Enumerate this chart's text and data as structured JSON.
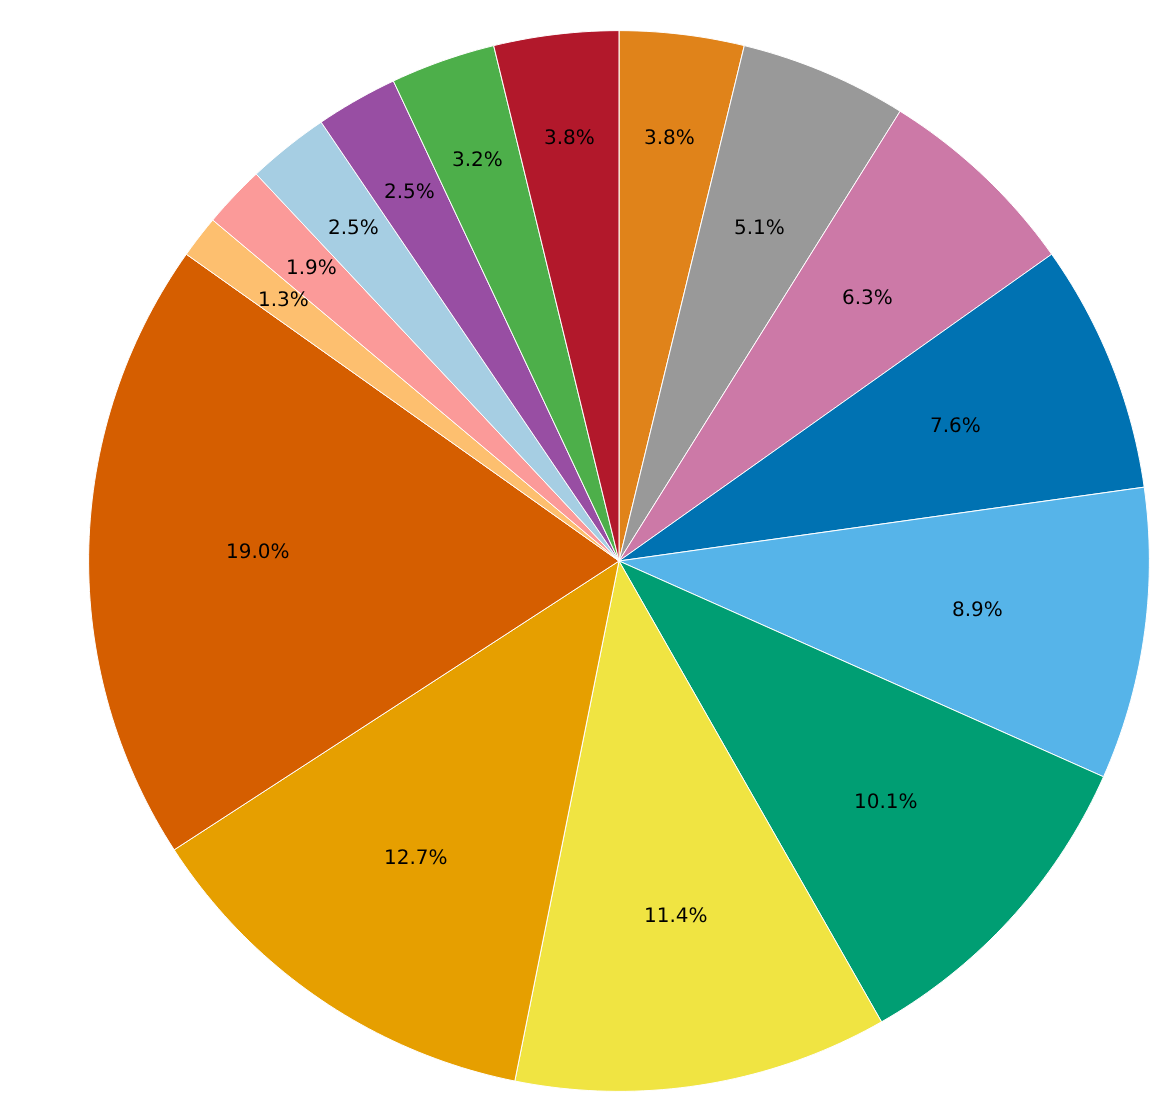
{
  "chart_data": {
    "type": "pie",
    "categories": [
      null,
      null,
      null,
      null,
      null,
      null,
      null,
      null,
      null,
      null,
      null,
      null,
      null,
      null,
      null
    ],
    "values": [
      3.8,
      5.1,
      6.3,
      7.6,
      8.9,
      10.1,
      11.4,
      12.7,
      19.0,
      1.3,
      1.9,
      2.5,
      2.5,
      3.2,
      3.8
    ],
    "value_labels": [
      "3.8%",
      "5.1%",
      "6.3%",
      "7.6%",
      "8.9%",
      "10.1%",
      "11.4%",
      "12.7%",
      "19.0%",
      "1.3%",
      "1.9%",
      "2.5%",
      "2.5%",
      "3.2%",
      "3.8%"
    ],
    "colors": [
      "#e0831a",
      "#999999",
      "#cc79a7",
      "#0072b2",
      "#56b4e9",
      "#009e73",
      "#f0e442",
      "#e69f00",
      "#d55e00",
      "#fdbf6f",
      "#fb9a99",
      "#a6cee3",
      "#984ea3",
      "#4daf4a",
      "#b2182b"
    ]
  }
}
